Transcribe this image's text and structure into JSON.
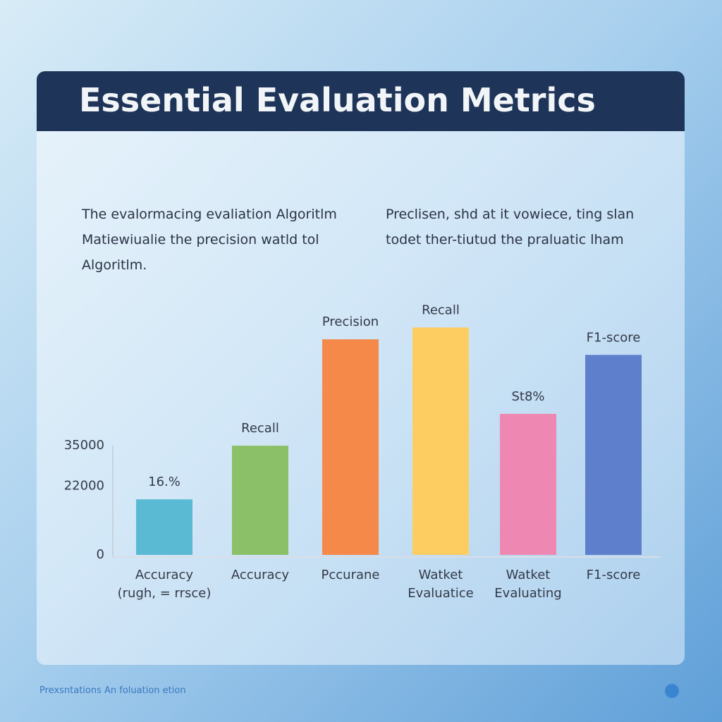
{
  "header": {
    "title": "Essential Evaluation Metrics"
  },
  "text": {
    "left": "The evalormacing evaliation Algoritlm\nMatiewiualie the precision watld tol\nAlgoritlm.",
    "right": "Preclisen, shd at it vowiece, ting slan\ntodet ther-tiutud the praluatic lham"
  },
  "footer": {
    "text": "Prexsntations An foluation etion"
  },
  "chart_data": {
    "type": "bar",
    "categories": [
      "Accuracy\n(rugh, = rrsce)",
      "Accuracy",
      "Pccurane",
      "Watket\nEvaluatice",
      "Watket\nEvaluating",
      "F1-score"
    ],
    "values": [
      17800,
      35000,
      69100,
      72900,
      45200,
      64100
    ],
    "colors": [
      "#5bbad3",
      "#8cc068",
      "#f5894a",
      "#fdcd62",
      "#ee88b2",
      "#5e7fcc"
    ],
    "annotations": [
      "16.%",
      "Recall",
      "Precision",
      "Recall",
      "St8%",
      "F1-score"
    ],
    "ylim": [
      0,
      80000
    ],
    "yticks": [
      0,
      22000,
      35000
    ],
    "grid": false
  }
}
